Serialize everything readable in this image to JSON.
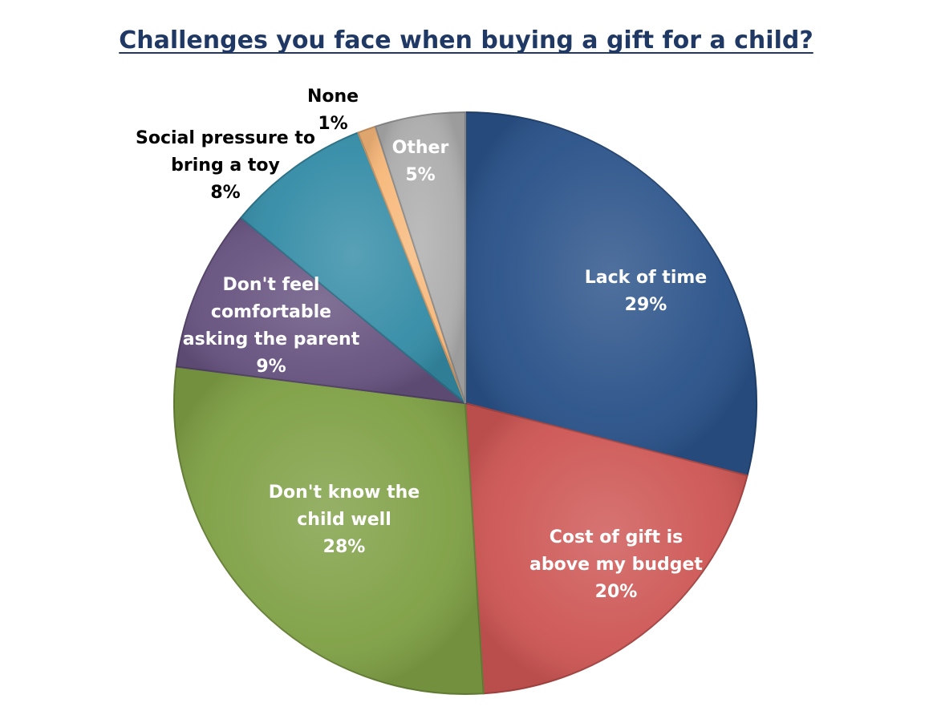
{
  "chart_data": {
    "type": "pie",
    "title": "Challenges you face when buying a gift for a child?",
    "slices": [
      {
        "label_lines": [
          "Lack of time"
        ],
        "pct_label": "29%",
        "value": 29,
        "color": "#2a5289",
        "text_color": "#ffffff"
      },
      {
        "label_lines": [
          "Cost of gift is",
          "above my budget"
        ],
        "pct_label": "20%",
        "value": 20,
        "color": "#cd5654",
        "text_color": "#ffffff"
      },
      {
        "label_lines": [
          "Don't know the",
          "child well"
        ],
        "pct_label": "28%",
        "value": 28,
        "color": "#7fa045",
        "text_color": "#ffffff"
      },
      {
        "label_lines": [
          "Don't feel",
          "comfortable",
          "asking the parent"
        ],
        "pct_label": "9%",
        "value": 9,
        "color": "#66527f",
        "text_color": "#ffffff"
      },
      {
        "label_lines": [
          "Social pressure to",
          "bring a toy"
        ],
        "pct_label": "8%",
        "value": 8,
        "color": "#348ca6",
        "text_color": "#000000"
      },
      {
        "label_lines": [
          "None"
        ],
        "pct_label": "1%",
        "value": 1,
        "color": "#f7b87a",
        "text_color": "#000000"
      },
      {
        "label_lines": [
          "Other"
        ],
        "pct_label": "5%",
        "value": 5,
        "color": "#adadad",
        "text_color": "#ffffff"
      }
    ]
  }
}
